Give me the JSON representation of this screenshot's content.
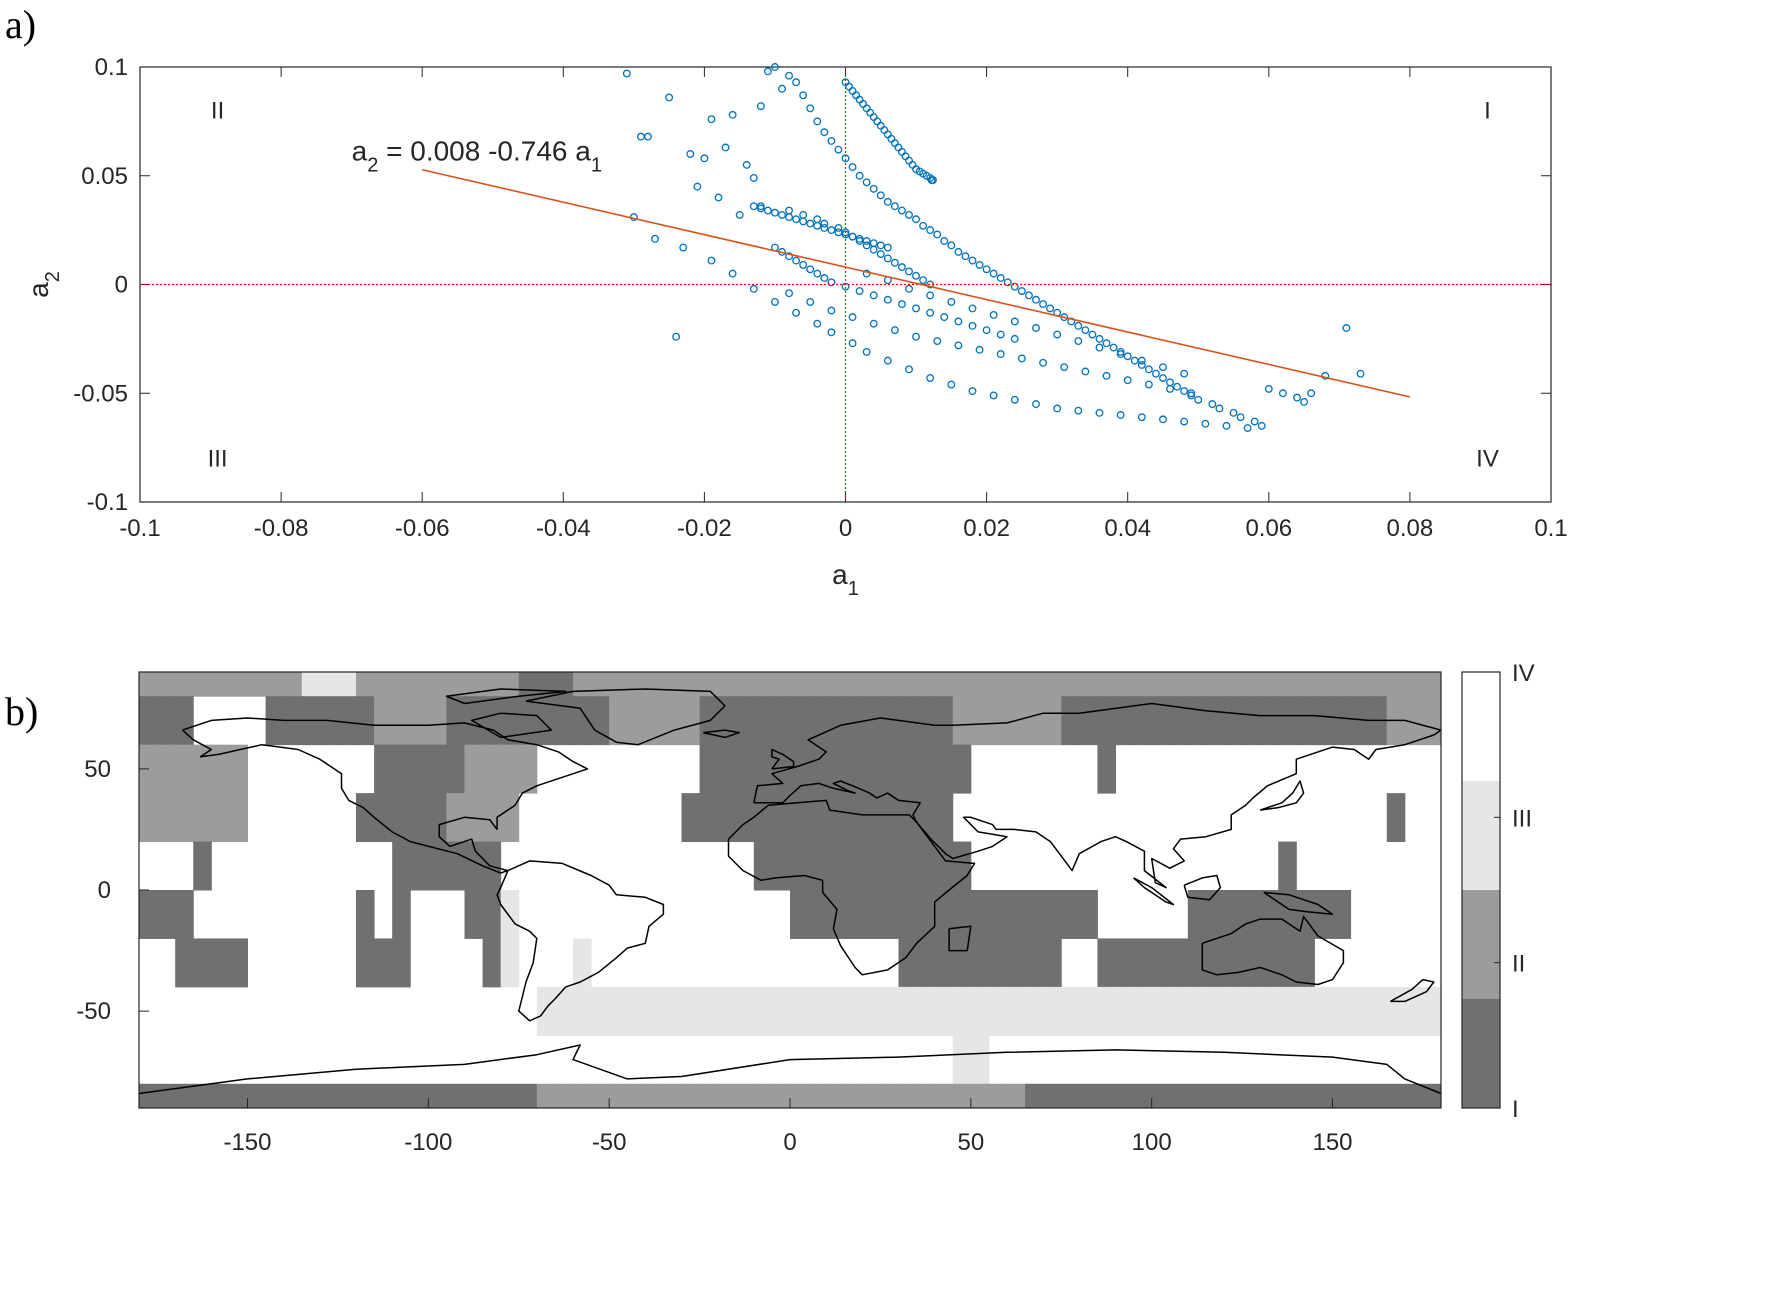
{
  "panels": {
    "a_label": "a)",
    "b_label": "b)"
  },
  "colors": {
    "scatter": "#0072BD",
    "regression": "#D95319",
    "zero_lines": "#FF0000",
    "class_I": "#707070",
    "class_II": "#9c9c9c",
    "class_III": "#e6e6e6",
    "class_IV": "#ffffff",
    "coast": "#000000"
  },
  "chart_data": [
    {
      "type": "scatter",
      "xlabel_main": "a",
      "xlabel_sub": "1",
      "ylabel_main": "a",
      "ylabel_sub": "2",
      "xlim": [
        -0.1,
        0.1
      ],
      "ylim": [
        -0.1,
        0.1
      ],
      "xticks": [
        "-0.1",
        "-0.08",
        "-0.06",
        "-0.04",
        "-0.02",
        "0",
        "0.02",
        "0.04",
        "0.06",
        "0.08",
        "0.1"
      ],
      "xtick_values": [
        -0.1,
        -0.08,
        -0.06,
        -0.04,
        -0.02,
        0,
        0.02,
        0.04,
        0.06,
        0.08,
        0.1
      ],
      "yticks": [
        "0.1",
        "0.05",
        "0",
        "-0.05",
        "-0.1"
      ],
      "ytick_values": [
        0.1,
        0.05,
        0,
        -0.05,
        -0.1
      ],
      "quadrants": [
        {
          "label": "I",
          "x": 0.091,
          "y": 0.08
        },
        {
          "label": "II",
          "x": -0.089,
          "y": 0.08
        },
        {
          "label": "III",
          "x": -0.089,
          "y": -0.08
        },
        {
          "label": "IV",
          "x": 0.091,
          "y": -0.08
        }
      ],
      "regression": {
        "intercept": 0.008,
        "slope": -0.746,
        "x_range": [
          -0.06,
          0.08
        ],
        "equation": {
          "p1": "a",
          "s1": "2",
          "p2": " = 0.008 -0.746 a",
          "s2": "1",
          "anchor_x": -0.07,
          "anchor_y": 0.057
        }
      },
      "reference_lines": {
        "x": 0,
        "y": 0
      },
      "series": [
        {
          "marker": "circle",
          "x": [
            -0.031,
            -0.029,
            -0.028,
            -0.025,
            -0.024,
            -0.022,
            -0.021,
            -0.02,
            -0.019,
            -0.018,
            -0.017,
            -0.016,
            -0.015,
            -0.014,
            -0.013,
            -0.012,
            -0.011,
            -0.01,
            -0.009,
            -0.008,
            -0.007,
            -0.006,
            -0.005,
            -0.004,
            -0.003,
            -0.002,
            -0.001,
            0.0,
            0.001,
            0.002,
            0.003,
            0.004,
            0.005,
            0.006,
            0.007,
            0.008,
            0.009,
            0.01,
            0.011,
            0.012,
            0.013,
            0.014,
            0.015,
            0.016,
            0.017,
            0.018,
            0.019,
            0.02,
            0.021,
            0.022,
            0.023,
            0.024,
            0.025,
            0.026,
            0.027,
            0.028,
            0.029,
            0.03,
            0.031,
            0.032,
            0.033,
            0.034,
            0.035,
            0.036,
            0.037,
            0.038,
            0.039,
            0.04,
            0.041,
            0.042,
            0.043,
            0.044,
            0.045,
            0.046,
            0.047,
            0.048,
            0.049,
            0.05,
            0.052,
            0.053,
            0.055,
            0.056,
            0.058,
            0.059,
            0.06,
            0.062,
            0.064,
            0.065,
            0.066,
            0.068,
            0.071,
            0.073,
            -0.03,
            -0.027,
            -0.023,
            -0.019,
            -0.016,
            -0.013,
            -0.01,
            -0.007,
            -0.004,
            -0.002,
            0.001,
            0.003,
            0.006,
            0.009,
            0.012,
            0.015,
            0.018,
            0.021,
            0.024,
            0.027,
            0.03,
            0.033,
            0.036,
            0.039,
            0.042,
            0.045,
            0.048,
            0.051,
            0.054,
            0.057,
            -0.012,
            -0.008,
            -0.006,
            -0.004,
            -0.003,
            -0.001,
            0.0,
            0.001,
            0.002,
            0.003,
            0.004,
            0.005,
            0.006,
            0.007,
            0.008,
            0.009,
            0.01,
            0.011,
            0.012,
            -0.01,
            -0.009,
            -0.008,
            -0.007,
            -0.006,
            -0.005,
            -0.004,
            -0.003,
            -0.002,
            0.0,
            0.002,
            0.004,
            0.006,
            0.008,
            0.01,
            0.012,
            0.014,
            0.016,
            0.018,
            0.02,
            0.022,
            0.024,
            0.003,
            0.006,
            0.009,
            0.012,
            0.015,
            0.018,
            0.021,
            0.024,
            0.027,
            0.03,
            0.033,
            0.036,
            0.039,
            0.042,
            0.045,
            0.048,
            -0.008,
            -0.005,
            -0.002,
            0.001,
            0.004,
            0.007,
            0.01,
            0.013,
            0.016,
            0.019,
            0.022,
            0.025,
            0.028,
            0.031,
            0.034,
            0.037,
            0.04,
            0.043,
            0.046,
            0.049
          ],
          "y": [
            0.097,
            0.068,
            0.068,
            0.086,
            -0.024,
            0.06,
            0.045,
            0.058,
            0.076,
            0.04,
            0.063,
            0.078,
            0.032,
            0.055,
            0.049,
            0.082,
            0.098,
            0.1,
            0.09,
            0.096,
            0.093,
            0.087,
            0.081,
            0.075,
            0.07,
            0.066,
            0.062,
            0.058,
            0.054,
            0.05,
            0.047,
            0.044,
            0.041,
            0.038,
            0.036,
            0.034,
            0.032,
            0.03,
            0.027,
            0.025,
            0.023,
            0.02,
            0.018,
            0.015,
            0.013,
            0.011,
            0.009,
            0.007,
            0.005,
            0.003,
            0.001,
            -0.001,
            -0.003,
            -0.005,
            -0.007,
            -0.009,
            -0.011,
            -0.013,
            -0.015,
            -0.017,
            -0.019,
            -0.021,
            -0.023,
            -0.025,
            -0.027,
            -0.029,
            -0.031,
            -0.033,
            -0.035,
            -0.037,
            -0.039,
            -0.041,
            -0.043,
            -0.045,
            -0.047,
            -0.049,
            -0.051,
            -0.053,
            -0.055,
            -0.057,
            -0.059,
            -0.061,
            -0.063,
            -0.065,
            -0.048,
            -0.05,
            -0.052,
            -0.054,
            -0.05,
            -0.042,
            -0.02,
            -0.041,
            0.031,
            0.021,
            0.017,
            0.011,
            0.005,
            -0.002,
            -0.008,
            -0.013,
            -0.018,
            -0.022,
            -0.027,
            -0.031,
            -0.035,
            -0.039,
            -0.043,
            -0.046,
            -0.049,
            -0.051,
            -0.053,
            -0.055,
            -0.057,
            -0.058,
            -0.059,
            -0.06,
            -0.061,
            -0.062,
            -0.063,
            -0.064,
            -0.065,
            -0.066,
            0.036,
            0.034,
            0.032,
            0.03,
            0.028,
            0.026,
            0.024,
            0.022,
            0.02,
            0.018,
            0.016,
            0.014,
            0.012,
            0.01,
            0.008,
            0.006,
            0.004,
            0.002,
            0.0,
            0.017,
            0.015,
            0.013,
            0.011,
            0.009,
            0.007,
            0.005,
            0.003,
            0.001,
            -0.001,
            -0.003,
            -0.005,
            -0.007,
            -0.009,
            -0.011,
            -0.013,
            -0.015,
            -0.017,
            -0.019,
            -0.021,
            -0.023,
            -0.025,
            0.005,
            0.002,
            -0.002,
            -0.005,
            -0.008,
            -0.011,
            -0.014,
            -0.017,
            -0.02,
            -0.023,
            -0.026,
            -0.029,
            -0.032,
            -0.035,
            -0.038,
            -0.041,
            -0.004,
            -0.008,
            -0.012,
            -0.015,
            -0.018,
            -0.021,
            -0.024,
            -0.026,
            -0.028,
            -0.03,
            -0.032,
            -0.034,
            -0.036,
            -0.038,
            -0.04,
            -0.042,
            -0.044,
            -0.046,
            -0.048,
            -0.05
          ]
        },
        {
          "marker": "circle",
          "x": [
            0.0,
            0.0005,
            0.001,
            0.0015,
            0.002,
            0.0025,
            0.003,
            0.0035,
            0.004,
            0.0045,
            0.005,
            0.0055,
            0.006,
            0.0065,
            0.007,
            0.0075,
            0.008,
            0.0085,
            0.009,
            0.0095,
            0.01,
            0.0105,
            0.011,
            0.0115,
            0.012,
            0.0122,
            0.0124
          ],
          "y": [
            0.093,
            0.091,
            0.089,
            0.087,
            0.085,
            0.083,
            0.081,
            0.079,
            0.077,
            0.075,
            0.073,
            0.071,
            0.069,
            0.067,
            0.065,
            0.063,
            0.061,
            0.059,
            0.057,
            0.055,
            0.053,
            0.052,
            0.051,
            0.05,
            0.049,
            0.048,
            0.048
          ]
        },
        {
          "marker": "circle",
          "x": [
            -0.013,
            -0.012,
            -0.011,
            -0.01,
            -0.009,
            -0.008,
            -0.007,
            -0.006,
            -0.005,
            -0.004,
            -0.003,
            -0.002,
            -0.001,
            0.0,
            0.001,
            0.002,
            0.003,
            0.004,
            0.005,
            0.006
          ],
          "y": [
            0.036,
            0.035,
            0.034,
            0.033,
            0.032,
            0.031,
            0.03,
            0.029,
            0.028,
            0.027,
            0.026,
            0.025,
            0.024,
            0.023,
            0.022,
            0.021,
            0.02,
            0.019,
            0.018,
            0.017
          ]
        }
      ]
    },
    {
      "type": "heatmap",
      "xlim": [
        -180,
        180
      ],
      "ylim": [
        -90,
        90
      ],
      "xticks": [
        "-150",
        "-100",
        "-50",
        "0",
        "50",
        "100",
        "150"
      ],
      "xtick_values": [
        -150,
        -100,
        -50,
        0,
        50,
        100,
        150
      ],
      "yticks": [
        "50",
        "0",
        "-50"
      ],
      "ytick_values": [
        50,
        0,
        -50
      ],
      "colorbar": {
        "levels": [
          "I",
          "II",
          "III",
          "IV"
        ],
        "ticks": [
          "I",
          "II",
          "III",
          "IV"
        ]
      },
      "cell_size_deg": 5,
      "bands": [
        {
          "lat": [
            80,
            90
          ],
          "classes": "2222222223332222222221112222222222222222222222222222222222222222222222221"
        },
        {
          "lat": [
            60,
            80
          ],
          "classes": "1114444111111222211111111122222111111111111112222221111111111111111112222"
        },
        {
          "lat": [
            40,
            60
          ],
          "classes": "2222224444444111112222444444444111111111111111444444414444444444444444442"
        },
        {
          "lat": [
            20,
            40
          ],
          "classes": "2222224444441111122224444444441111111111111114444444444444444444444441442"
        },
        {
          "lat": [
            0,
            20
          ],
          "classes": "4441444444444411111144444444444444111111111111444444444444444441444444444"
        },
        {
          "lat": [
            -20,
            0
          ],
          "classes": "1114444444441414441134444444444444441111111111111111144444111111111444444"
        },
        {
          "lat": [
            -40,
            -20
          ],
          "classes": "4411114444441114444134443444444444444444441111111114411111111111144444444"
        },
        {
          "lat": [
            -60,
            -40
          ],
          "classes": "4444444444444444444444333333333333333333333333333333333333333333333333333"
        },
        {
          "lat": [
            -80,
            -60
          ],
          "classes": "4444444444444444444444444444444444444444444443344444444444444444444444444"
        },
        {
          "lat": [
            -90,
            -80
          ],
          "classes": "1111111111111111111111222222222222222222222222222111111111111111111111111"
        }
      ]
    }
  ]
}
